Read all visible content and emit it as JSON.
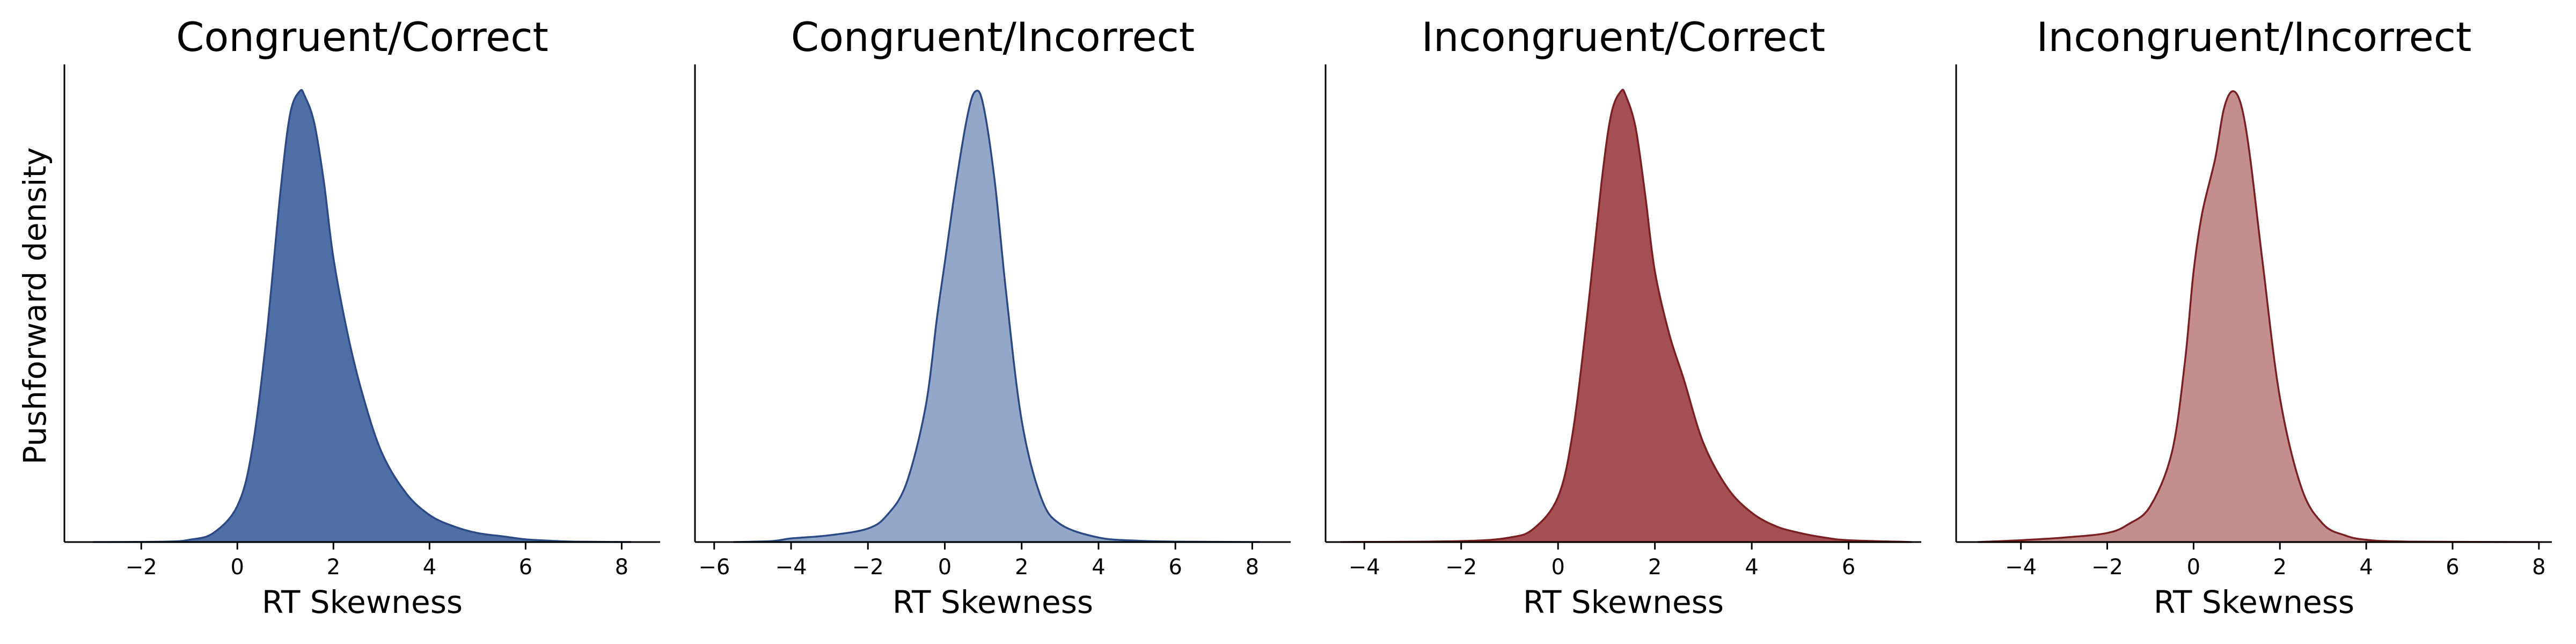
{
  "figure": {
    "ylabel": "Pushforward density",
    "panel_count": 4
  },
  "chart_data": [
    {
      "type": "area",
      "title": "Congruent/Correct",
      "xlabel": "RT Skewness",
      "ylabel": "Pushforward density",
      "xlim": [
        -3.6,
        8.8
      ],
      "xticks": [
        -2,
        0,
        2,
        4,
        6,
        8
      ],
      "fill_color": "#4e6fa5",
      "line_color": "#2b4a85",
      "fill_opacity": 1.0,
      "series": [
        {
          "x": [
            -3.0,
            -1.5,
            -1.0,
            -0.5,
            0.0,
            0.3,
            0.6,
            0.9,
            1.1,
            1.3,
            1.4,
            1.6,
            1.8,
            2.0,
            2.3,
            2.6,
            3.0,
            3.5,
            4.0,
            4.5,
            5.0,
            5.5,
            6.0,
            6.5,
            7.0,
            8.2
          ],
          "y": [
            0.0,
            0.001,
            0.005,
            0.02,
            0.08,
            0.2,
            0.45,
            0.78,
            0.95,
            1.0,
            0.99,
            0.93,
            0.8,
            0.63,
            0.46,
            0.33,
            0.2,
            0.11,
            0.06,
            0.035,
            0.02,
            0.013,
            0.006,
            0.003,
            0.001,
            0.0
          ]
        }
      ]
    },
    {
      "type": "area",
      "title": "Congruent/Incorrect",
      "xlabel": "RT Skewness",
      "xlim": [
        -6.5,
        9.0
      ],
      "xticks": [
        -6,
        -4,
        -2,
        0,
        2,
        4,
        6,
        8
      ],
      "fill_color": "#93a8c8",
      "line_color": "#2b4a85",
      "fill_opacity": 1.0,
      "series": [
        {
          "x": [
            -5.5,
            -4.5,
            -4.0,
            -3.0,
            -2.0,
            -1.5,
            -1.0,
            -0.5,
            -0.2,
            0.0,
            0.3,
            0.6,
            0.8,
            1.0,
            1.3,
            1.6,
            2.0,
            2.5,
            3.0,
            4.0,
            5.0,
            6.0,
            8.2
          ],
          "y": [
            0.0,
            0.002,
            0.008,
            0.015,
            0.03,
            0.06,
            0.13,
            0.3,
            0.5,
            0.62,
            0.8,
            0.95,
            1.0,
            0.97,
            0.8,
            0.55,
            0.27,
            0.1,
            0.04,
            0.01,
            0.003,
            0.001,
            0.0
          ]
        }
      ]
    },
    {
      "type": "area",
      "title": "Incongruent/Correct",
      "xlabel": "RT Skewness",
      "xlim": [
        -4.8,
        7.5
      ],
      "xticks": [
        -4,
        -2,
        0,
        2,
        4,
        6
      ],
      "fill_color": "#a44f52",
      "line_color": "#7a1f22",
      "fill_opacity": 1.0,
      "series": [
        {
          "x": [
            -4.5,
            -2.0,
            -1.0,
            -0.5,
            0.0,
            0.3,
            0.6,
            0.9,
            1.1,
            1.3,
            1.4,
            1.6,
            1.8,
            2.0,
            2.3,
            2.6,
            3.0,
            3.5,
            4.0,
            4.5,
            5.0,
            5.5,
            6.0,
            7.3
          ],
          "y": [
            0.0,
            0.002,
            0.01,
            0.03,
            0.1,
            0.24,
            0.5,
            0.8,
            0.95,
            1.0,
            0.99,
            0.92,
            0.77,
            0.6,
            0.46,
            0.36,
            0.22,
            0.12,
            0.065,
            0.035,
            0.02,
            0.01,
            0.004,
            0.0
          ]
        }
      ]
    },
    {
      "type": "area",
      "title": "Incongruent/Incorrect",
      "xlabel": "RT Skewness",
      "xlim": [
        -5.5,
        8.3
      ],
      "xticks": [
        -4,
        -2,
        0,
        2,
        4,
        6,
        8
      ],
      "fill_color": "#c48e8f",
      "line_color": "#7a1f22",
      "fill_opacity": 1.0,
      "series": [
        {
          "x": [
            -5.0,
            -4.0,
            -3.0,
            -2.0,
            -1.5,
            -1.0,
            -0.5,
            -0.2,
            0.0,
            0.2,
            0.5,
            0.7,
            0.9,
            1.1,
            1.3,
            1.6,
            2.0,
            2.5,
            3.0,
            3.5,
            4.0,
            5.0,
            8.0
          ],
          "y": [
            0.0,
            0.004,
            0.01,
            0.02,
            0.04,
            0.08,
            0.2,
            0.4,
            0.6,
            0.73,
            0.85,
            0.96,
            1.0,
            0.97,
            0.86,
            0.62,
            0.32,
            0.12,
            0.04,
            0.015,
            0.005,
            0.001,
            0.0
          ]
        }
      ]
    }
  ]
}
